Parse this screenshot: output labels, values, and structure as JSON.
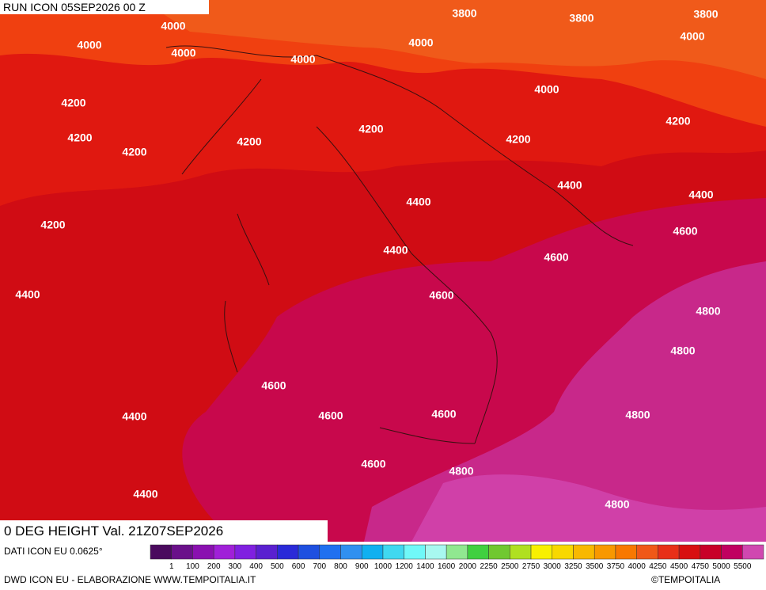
{
  "header": {
    "run": "RUN ICON 05SEP2026 00 Z"
  },
  "map": {
    "contour_labels": [
      "3800",
      "3800",
      "3800",
      "4000",
      "4000",
      "4000",
      "4000",
      "4000",
      "4000",
      "4000",
      "4200",
      "4200",
      "4200",
      "4200",
      "4200",
      "4200",
      "4200",
      "4200",
      "4400",
      "4400",
      "4400",
      "4400",
      "4400",
      "4400",
      "4400",
      "4600",
      "4600",
      "4600",
      "4600",
      "4600",
      "4600",
      "4600",
      "4800",
      "4800",
      "4800",
      "4800",
      "4800"
    ],
    "valid": "0 DEG HEIGHT Val. 21Z07SEP2026"
  },
  "legend": {
    "source": "DATI ICON EU 0.0625°",
    "colors": [
      "#4a0a5e",
      "#6a108a",
      "#8a10b0",
      "#a020d8",
      "#8020e0",
      "#5a20d0",
      "#2a2ad8",
      "#1e50e0",
      "#2070f0",
      "#3090f0",
      "#10b0f0",
      "#40d8f0",
      "#70f8f8",
      "#a8f8f0",
      "#90e890",
      "#40d040",
      "#70c830",
      "#b0e020",
      "#f8f000",
      "#f8d800",
      "#f8b800",
      "#f89800",
      "#f87800",
      "#f05818",
      "#e83018",
      "#d81010",
      "#c80028",
      "#c00060",
      "#d048b0"
    ],
    "labels": [
      1,
      100,
      200,
      300,
      400,
      500,
      600,
      700,
      800,
      900,
      1000,
      1200,
      1400,
      1600,
      2000,
      2250,
      2500,
      2750,
      3000,
      3250,
      3500,
      3750,
      4000,
      4250,
      4500,
      4750,
      5000,
      5500
    ]
  },
  "footer": {
    "credit": "DWD ICON EU - ELABORAZIONE WWW.TEMPOITALIA.IT",
    "copyright": "©TEMPOITALIA"
  }
}
